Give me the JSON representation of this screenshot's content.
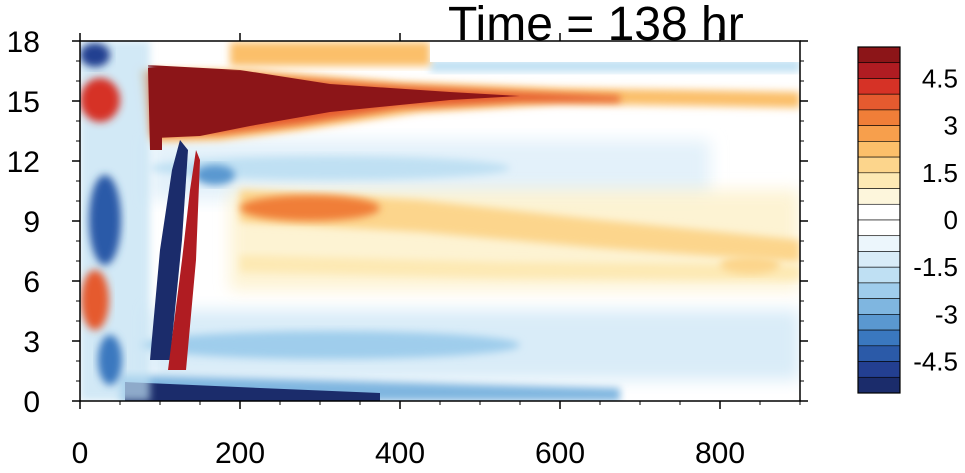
{
  "chart_data": {
    "type": "heatmap",
    "title": "Time = 138 hr",
    "xlabel": "",
    "ylabel": "",
    "xlim": [
      0,
      900
    ],
    "ylim": [
      0,
      18
    ],
    "x_ticks": [
      "0",
      "200",
      "400",
      "600",
      "800"
    ],
    "y_ticks": [
      "0",
      "3",
      "6",
      "9",
      "12",
      "15",
      "18"
    ],
    "colorbar": {
      "levels": [
        -5.5,
        -5,
        -4.5,
        -4,
        -3.5,
        -3,
        -2.5,
        -2,
        -1.5,
        -1,
        -0.5,
        0,
        0.5,
        1,
        1.5,
        2,
        2.5,
        3,
        3.5,
        4,
        4.5,
        5,
        5.5
      ],
      "colors": [
        "#1b2c6b",
        "#233f91",
        "#2b5aa8",
        "#3a78bf",
        "#5a98d0",
        "#7fb6e0",
        "#9fcdec",
        "#bfe0f3",
        "#d8ecf8",
        "#ecf6fc",
        "#ffffff",
        "#ffffff",
        "#fdf6dc",
        "#fde9b4",
        "#fcd58c",
        "#fbbf6a",
        "#f79f4c",
        "#f07e38",
        "#e55a2f",
        "#d63226",
        "#b01c22",
        "#8c1518"
      ],
      "tick_labels": [
        "4.5",
        "3",
        "1.5",
        "0",
        "-1.5",
        "-3",
        "-4.5"
      ]
    },
    "features": [
      {
        "name": "upper positive band",
        "x": [
          130,
          900
        ],
        "y_center": 15.3,
        "peak_value": 6,
        "description_value_units": "strong positive near x 100-450, fading to ~1.5 by x 800"
      },
      {
        "name": "middle positive band",
        "x": [
          200,
          900
        ],
        "y_center": 9.4,
        "peak_value": 2.5
      },
      {
        "name": "lower positive band",
        "x": [
          200,
          900
        ],
        "y_center": 6.5,
        "peak_value": 1.5
      },
      {
        "name": "negative near-surface band",
        "x": [
          80,
          600
        ],
        "y_center": 0.3,
        "peak_value": -5.5
      },
      {
        "name": "negative low-level band",
        "x": [
          150,
          700
        ],
        "y_center": 2.8,
        "peak_value": -2.0
      },
      {
        "name": "negative 12 km band",
        "x": [
          150,
          700
        ],
        "y_center": 11.8,
        "peak_value": -1.5
      },
      {
        "name": "strong negative tilted feature",
        "x": [
          90,
          125
        ],
        "y": [
          0.5,
          13
        ],
        "peak_value": -6
      },
      {
        "name": "strong positive tilted feature",
        "x": [
          125,
          145
        ],
        "y": [
          1,
          12
        ],
        "peak_value": 5
      }
    ]
  }
}
